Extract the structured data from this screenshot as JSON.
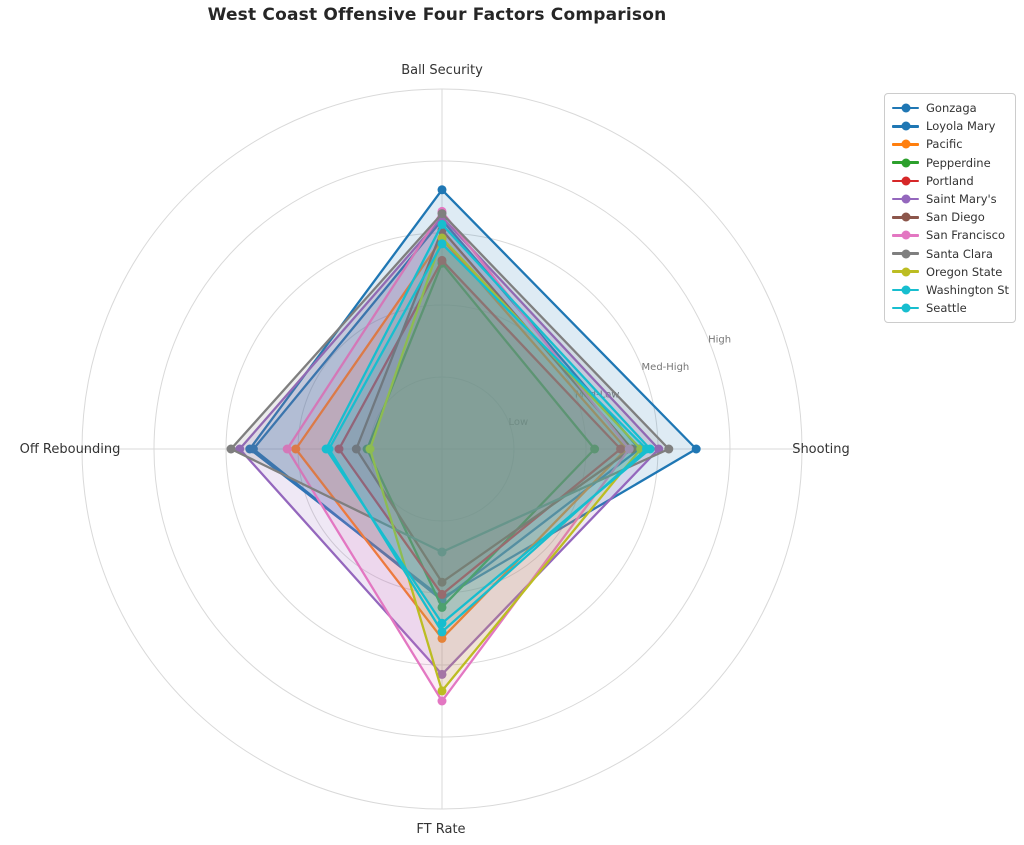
{
  "chart_data": {
    "type": "radar",
    "title": "West Coast Offensive Four Factors Comparison",
    "axes": [
      "Ball Security",
      "Shooting",
      "FT Rate",
      "Off Rebounding"
    ],
    "tick_labels": [
      "Low",
      "Med-Low",
      "Med-High",
      "High"
    ],
    "scale": {
      "min": 0,
      "max": 5,
      "tick_values": [
        1,
        2,
        3,
        4
      ]
    },
    "grid": true,
    "grid_color": "#d9d9d9",
    "tick_label_color": "#767676",
    "axis_label_color": "#333333",
    "legend_position": "upper right",
    "series": [
      {
        "name": "Gonzaga",
        "color": "#1f77b4",
        "values": [
          3.6,
          3.53,
          2.07,
          2.67
        ]
      },
      {
        "name": "Loyola Mary",
        "color": "#1f77b4",
        "values": [
          3.18,
          2.74,
          2.1,
          2.62
        ]
      },
      {
        "name": "Pacific",
        "color": "#ff7f0e",
        "values": [
          2.92,
          2.56,
          2.63,
          2.03
        ]
      },
      {
        "name": "Pepperdine",
        "color": "#2ca02c",
        "values": [
          2.58,
          2.12,
          2.2,
          1.04
        ]
      },
      {
        "name": "Portland",
        "color": "#d62728",
        "values": [
          2.62,
          2.48,
          2.02,
          1.43
        ]
      },
      {
        "name": "Saint Mary's",
        "color": "#9467bd",
        "values": [
          3.22,
          3.01,
          3.13,
          2.81
        ]
      },
      {
        "name": "San Diego",
        "color": "#8c564b",
        "values": [
          3.04,
          2.64,
          1.85,
          1.19
        ]
      },
      {
        "name": "San Francisco",
        "color": "#e377c2",
        "values": [
          3.3,
          2.6,
          3.5,
          2.15
        ]
      },
      {
        "name": "Santa Clara",
        "color": "#7f7f7f",
        "values": [
          3.27,
          3.15,
          1.43,
          2.93
        ]
      },
      {
        "name": "Oregon State",
        "color": "#bcbd22",
        "values": [
          2.93,
          2.76,
          3.36,
          1.0
        ]
      },
      {
        "name": "Washington St",
        "color": "#17becf",
        "values": [
          3.12,
          2.89,
          2.42,
          1.61
        ]
      },
      {
        "name": "Seattle",
        "color": "#17becf",
        "values": [
          2.85,
          2.84,
          2.54,
          1.57
        ]
      }
    ]
  }
}
